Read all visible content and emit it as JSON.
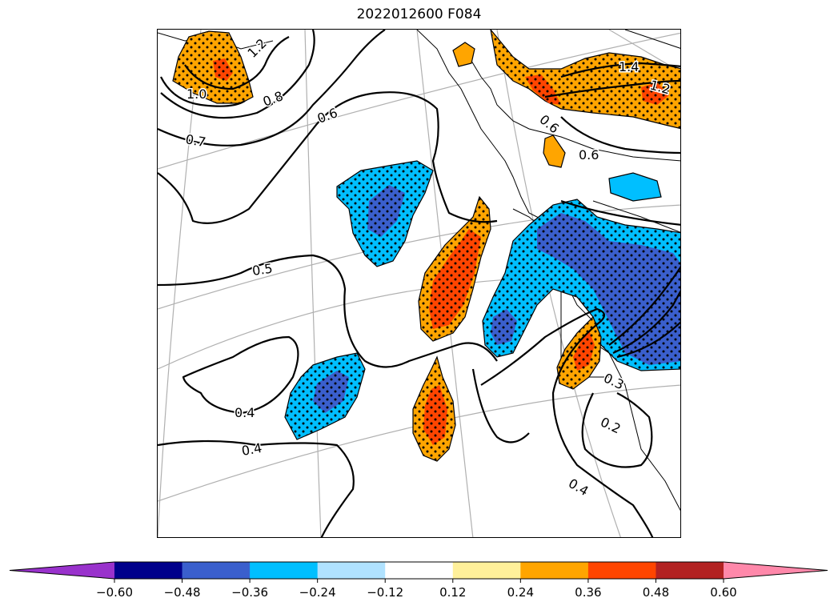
{
  "title": "2022012600 F084",
  "chart_data": {
    "type": "contour-map",
    "title": "2022012600 F084",
    "contour_labels": [
      "1.2",
      "1.0",
      "0.8",
      "0.7",
      "0.6",
      "0.5",
      "0.4",
      "0.4",
      "0.4",
      "0.6",
      "0.6",
      "1.4",
      "1.2",
      "0.3",
      "0.2"
    ],
    "colorbar": {
      "orientation": "horizontal",
      "extend": "both",
      "bounds": [
        -0.6,
        -0.48,
        -0.36,
        -0.24,
        -0.12,
        0.12,
        0.24,
        0.36,
        0.48,
        0.6
      ],
      "tick_labels": [
        "−0.60",
        "−0.48",
        "−0.36",
        "−0.24",
        "−0.12",
        "0.12",
        "0.24",
        "0.36",
        "0.48",
        "0.60"
      ],
      "colors": [
        "#9932cc",
        "#00008b",
        "#3a5fcd",
        "#00bfff",
        "#b0e2ff",
        "#ffffff",
        "#fff09a",
        "#ffa500",
        "#ff4500",
        "#b22222",
        "#ff88aa"
      ]
    },
    "shaded_regions": [
      {
        "id": "A",
        "sign": "negative",
        "peak_class": -0.48
      },
      {
        "id": "B",
        "sign": "negative",
        "peak_class": -0.48
      },
      {
        "id": "C",
        "sign": "negative",
        "peak_class": -0.48
      },
      {
        "id": "D",
        "sign": "positive",
        "peak_class": 0.48
      },
      {
        "id": "E",
        "sign": "positive",
        "peak_class": 0.36
      },
      {
        "id": "F",
        "sign": "positive",
        "peak_class": 0.36
      },
      {
        "id": "G",
        "sign": "positive",
        "peak_class": 0.36
      },
      {
        "id": "H",
        "sign": "positive",
        "peak_class": 0.36
      }
    ],
    "stippling": "significance dots over shaded regions",
    "grid": true
  }
}
